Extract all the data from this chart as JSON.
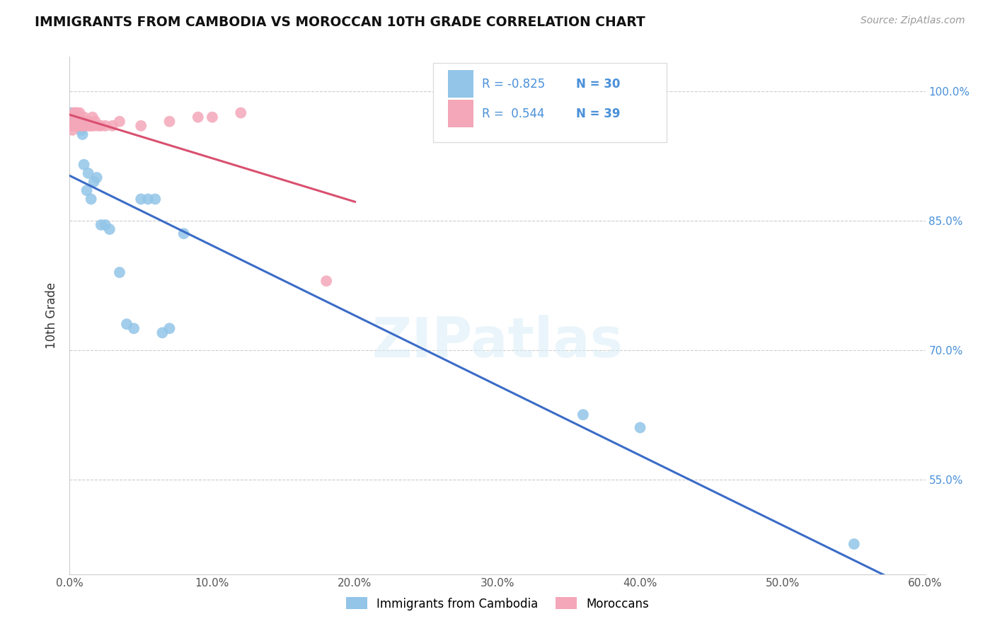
{
  "title": "IMMIGRANTS FROM CAMBODIA VS MOROCCAN 10TH GRADE CORRELATION CHART",
  "source": "Source: ZipAtlas.com",
  "ylabel": "10th Grade",
  "ytick_labels": [
    "100.0%",
    "85.0%",
    "70.0%",
    "55.0%"
  ],
  "ytick_values": [
    1.0,
    0.85,
    0.7,
    0.55
  ],
  "xlim": [
    0.0,
    0.6
  ],
  "ylim": [
    0.44,
    1.04
  ],
  "xtick_vals": [
    0.0,
    0.1,
    0.2,
    0.3,
    0.4,
    0.5,
    0.6
  ],
  "legend_blue_r": "-0.825",
  "legend_blue_n": "30",
  "legend_pink_r": "0.544",
  "legend_pink_n": "39",
  "legend_label_blue": "Immigrants from Cambodia",
  "legend_label_pink": "Moroccans",
  "blue_color": "#92C5E8",
  "pink_color": "#F4A7B9",
  "blue_line_color": "#3B6CC7",
  "pink_line_color": "#D95070",
  "watermark": "ZIPatlas",
  "cambodia_x": [
    0.001,
    0.002,
    0.003,
    0.004,
    0.005,
    0.006,
    0.007,
    0.008,
    0.009,
    0.01,
    0.012,
    0.013,
    0.015,
    0.017,
    0.019,
    0.022,
    0.025,
    0.028,
    0.035,
    0.04,
    0.045,
    0.05,
    0.055,
    0.06,
    0.065,
    0.07,
    0.08,
    0.36,
    0.4,
    0.55
  ],
  "cambodia_y": [
    0.975,
    0.965,
    0.96,
    0.965,
    0.97,
    0.96,
    0.965,
    0.955,
    0.95,
    0.915,
    0.885,
    0.905,
    0.875,
    0.895,
    0.9,
    0.845,
    0.845,
    0.84,
    0.79,
    0.73,
    0.725,
    0.875,
    0.875,
    0.875,
    0.72,
    0.725,
    0.835,
    0.625,
    0.61,
    0.475
  ],
  "moroccan_x": [
    0.001,
    0.002,
    0.003,
    0.004,
    0.005,
    0.006,
    0.007,
    0.008,
    0.009,
    0.01,
    0.012,
    0.013,
    0.015,
    0.017,
    0.02,
    0.025,
    0.03,
    0.035,
    0.05,
    0.07,
    0.09,
    0.1,
    0.12,
    0.002,
    0.003,
    0.004,
    0.005,
    0.006,
    0.007,
    0.008,
    0.009,
    0.01,
    0.011,
    0.013,
    0.014,
    0.016,
    0.018,
    0.022,
    0.18
  ],
  "moroccan_y": [
    0.96,
    0.97,
    0.975,
    0.975,
    0.975,
    0.97,
    0.975,
    0.965,
    0.96,
    0.965,
    0.96,
    0.965,
    0.96,
    0.96,
    0.96,
    0.96,
    0.96,
    0.965,
    0.96,
    0.965,
    0.97,
    0.97,
    0.975,
    0.955,
    0.96,
    0.965,
    0.96,
    0.96,
    0.97,
    0.96,
    0.96,
    0.97,
    0.965,
    0.965,
    0.96,
    0.97,
    0.965,
    0.96,
    0.78
  ]
}
